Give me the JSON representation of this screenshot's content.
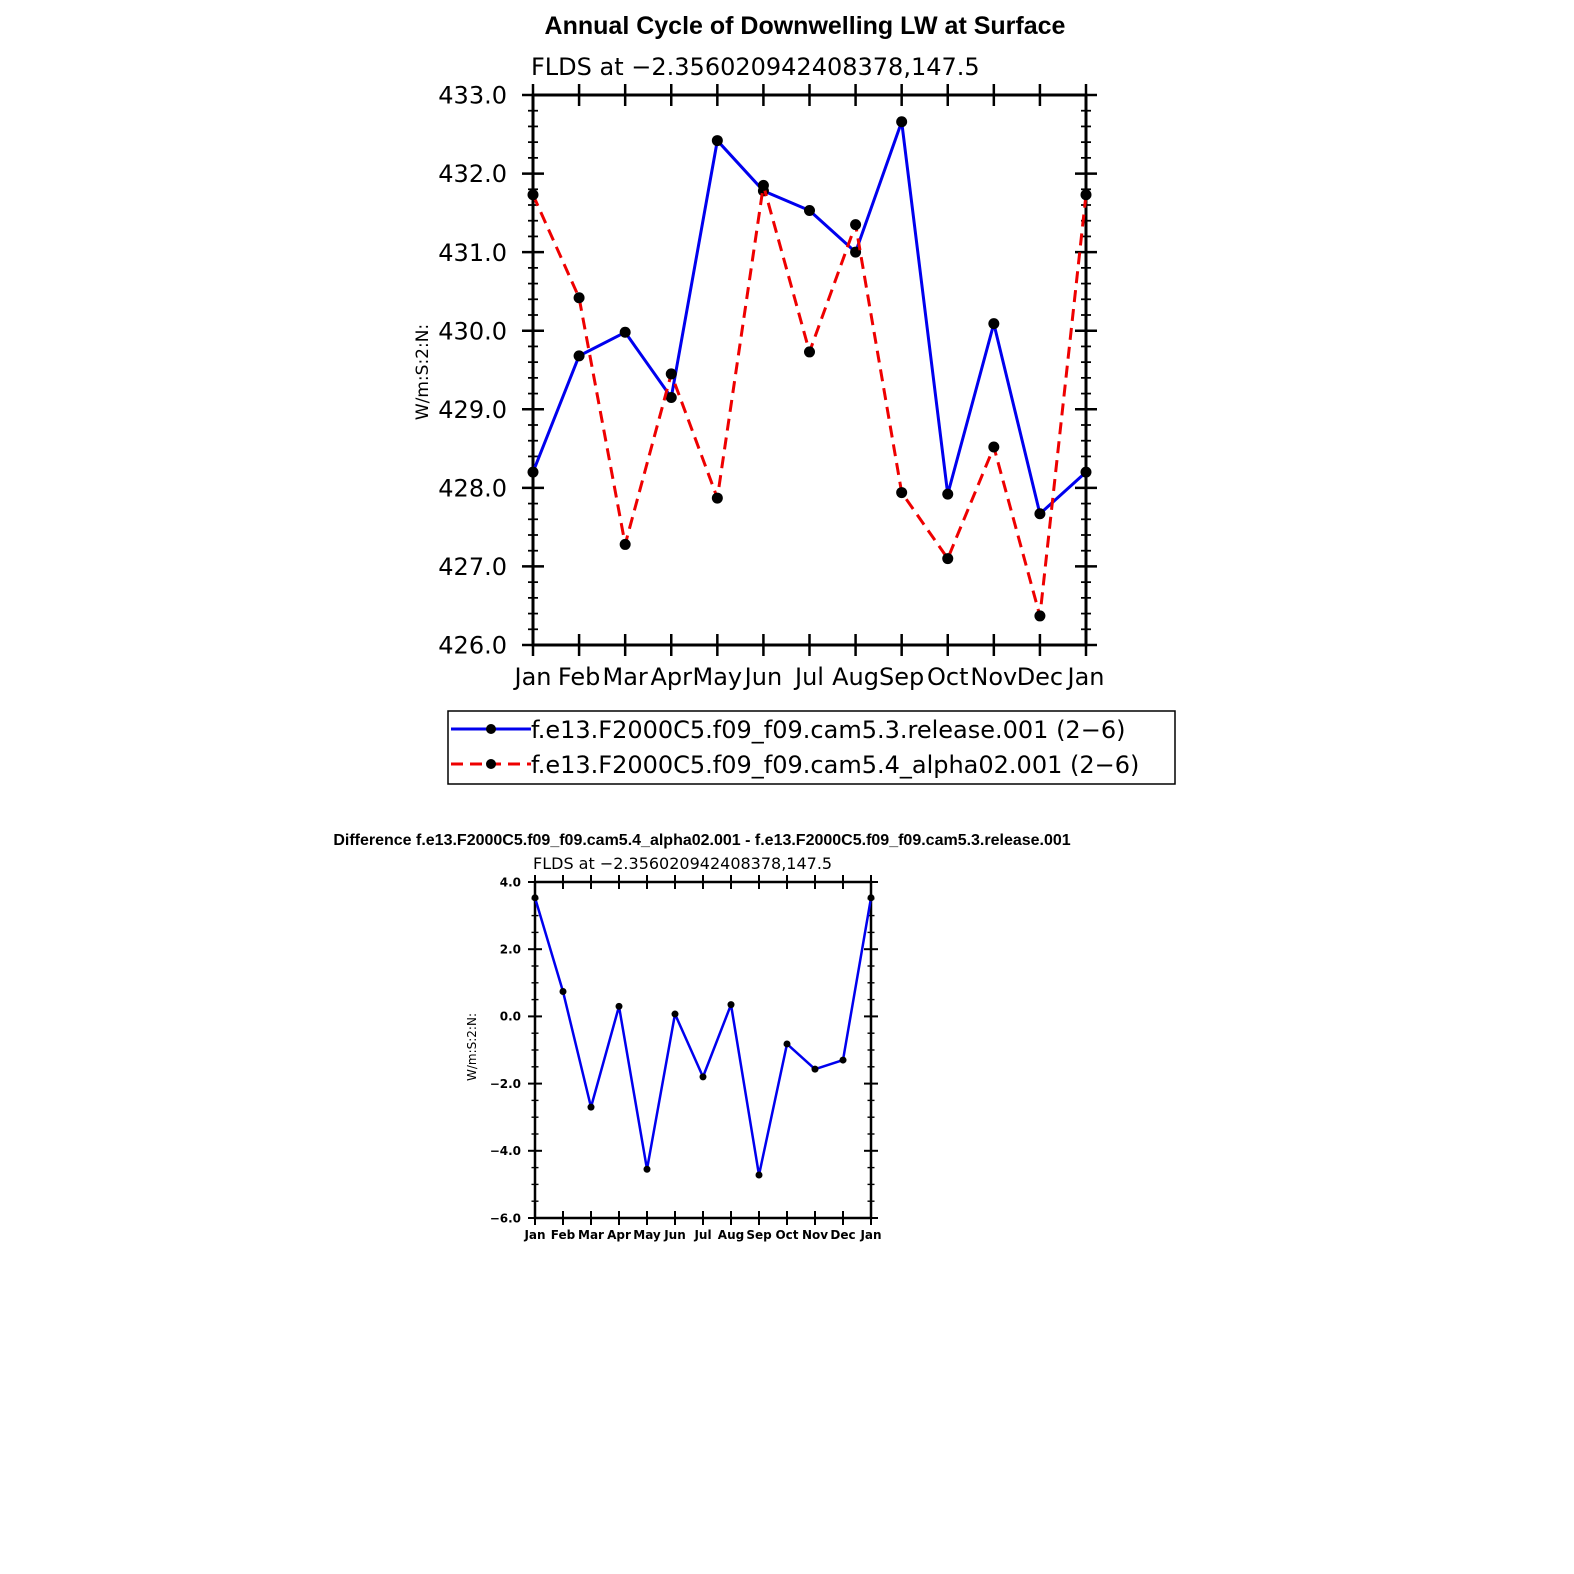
{
  "chart_data": [
    {
      "type": "line",
      "title": "Annual Cycle of Downwelling LW at Surface",
      "subtitle": "FLDS at −2.356020942408378,147.5",
      "ylabel": "W/m:S:2:N:",
      "xlabel": "",
      "ylim": [
        426.0,
        433.0
      ],
      "yticks": [
        "426.0",
        "427.0",
        "428.0",
        "429.0",
        "430.0",
        "431.0",
        "432.0",
        "433.0"
      ],
      "categories": [
        "Jan",
        "Feb",
        "Mar",
        "Apr",
        "May",
        "Jun",
        "Jul",
        "Aug",
        "Sep",
        "Oct",
        "Nov",
        "Dec",
        "Jan"
      ],
      "series": [
        {
          "name": "f.e13.F2000C5.f09_f09.cam5.3.release.001 (2−6)",
          "color": "#0000ee",
          "dash": "solid",
          "values": [
            428.2,
            429.68,
            429.98,
            429.15,
            432.42,
            431.78,
            431.53,
            431.0,
            432.66,
            427.92,
            430.09,
            427.67,
            428.2
          ]
        },
        {
          "name": "f.e13.F2000C5.f09_f09.cam5.4_alpha02.001 (2−6)",
          "color": "#ee0000",
          "dash": "dashed",
          "values": [
            431.73,
            430.42,
            427.28,
            429.45,
            427.87,
            431.85,
            429.73,
            431.35,
            427.94,
            427.1,
            428.52,
            426.37,
            431.73
          ]
        }
      ],
      "legend": "bottom"
    },
    {
      "type": "line",
      "title": "Difference f.e13.F2000C5.f09_f09.cam5.4_alpha02.001 - f.e13.F2000C5.f09_f09.cam5.3.release.001",
      "subtitle": "FLDS at −2.356020942408378,147.5",
      "ylabel": "W/m:S:2:N:",
      "xlabel": "",
      "ylim": [
        -6.0,
        4.0
      ],
      "yticks": [
        "−6.0",
        "−4.0",
        "−2.0",
        "0.0",
        "2.0",
        "4.0"
      ],
      "categories": [
        "Jan",
        "Feb",
        "Mar",
        "Apr",
        "May",
        "Jun",
        "Jul",
        "Aug",
        "Sep",
        "Oct",
        "Nov",
        "Dec",
        "Jan"
      ],
      "series": [
        {
          "color": "#0000ee",
          "dash": "solid",
          "values": [
            3.53,
            0.74,
            -2.7,
            0.3,
            -4.55,
            0.07,
            -1.8,
            0.35,
            -4.72,
            -0.82,
            -1.57,
            -1.3,
            3.53
          ]
        }
      ]
    }
  ]
}
